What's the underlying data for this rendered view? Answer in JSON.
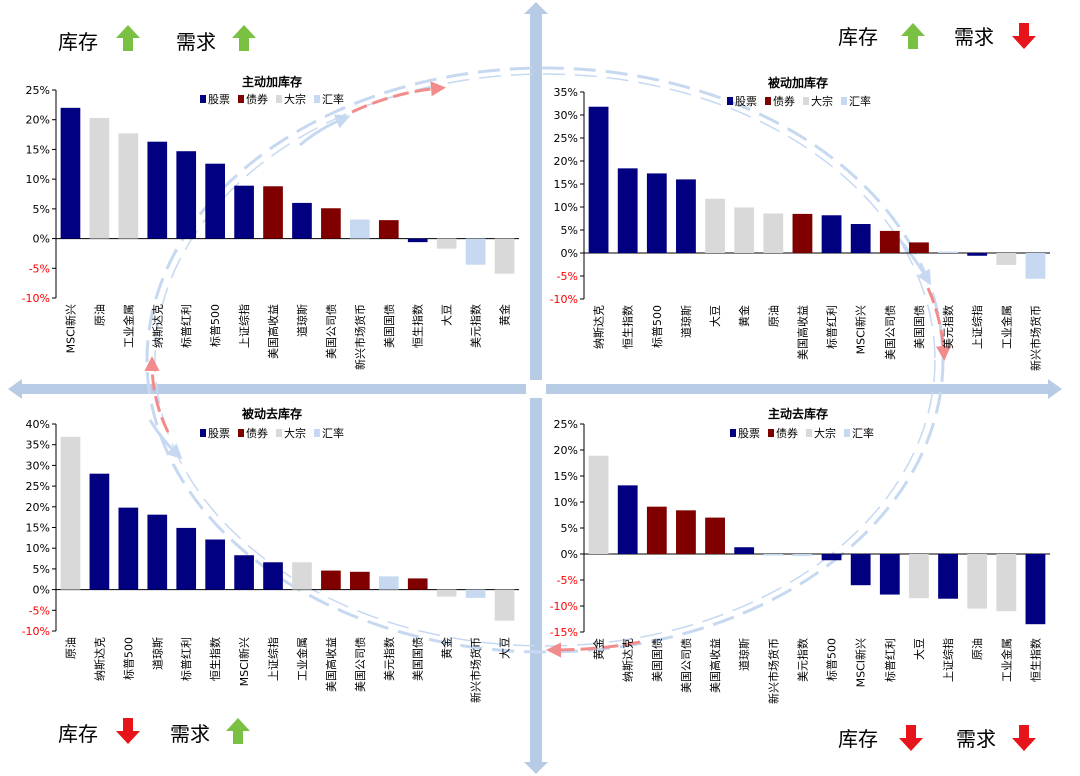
{
  "colors": {
    "stock": "#000080",
    "bond": "#800000",
    "commodity": "#d9d9d9",
    "fx": "#c6d9f1",
    "axis_arrow": "#b7cbe4",
    "up": "#7ac143",
    "down": "#e8141b",
    "tick": "#ff0000",
    "flow_arrow": "#f28c8c"
  },
  "legend": {
    "stock": "股票",
    "bond": "债券",
    "commodity": "大宗",
    "fx": "汇率"
  },
  "corners": {
    "tl": {
      "inventory": "库存",
      "inventory_dir": "up",
      "demand": "需求",
      "demand_dir": "up"
    },
    "tr": {
      "inventory": "库存",
      "inventory_dir": "up",
      "demand": "需求",
      "demand_dir": "down"
    },
    "bl": {
      "inventory": "库存",
      "inventory_dir": "down",
      "demand": "需求",
      "demand_dir": "up"
    },
    "br": {
      "inventory": "库存",
      "inventory_dir": "down",
      "demand": "需求",
      "demand_dir": "down"
    }
  },
  "chart_data": [
    {
      "type": "bar",
      "quadrant": "top-left",
      "title": "主动加库存",
      "ylim": [
        -10,
        25
      ],
      "yticks": [
        -10,
        -5,
        0,
        5,
        10,
        15,
        20,
        25
      ],
      "categories": [
        "MSCI新兴",
        "原油",
        "工业金属",
        "纳斯达克",
        "标普红利",
        "标普500",
        "上证综指",
        "美国高收益",
        "道琼斯",
        "美国公司债",
        "新兴市场货币",
        "美国国债",
        "恒生指数",
        "大豆",
        "美元指数",
        "黄金"
      ],
      "classes": [
        "stock",
        "commodity",
        "commodity",
        "stock",
        "stock",
        "stock",
        "stock",
        "bond",
        "stock",
        "bond",
        "fx",
        "bond",
        "stock",
        "commodity",
        "fx",
        "commodity"
      ],
      "values": [
        22,
        20.3,
        17.7,
        16.3,
        14.7,
        12.6,
        8.9,
        8.8,
        6.0,
        5.1,
        3.2,
        3.1,
        -0.6,
        -1.7,
        -4.4,
        -5.9
      ]
    },
    {
      "type": "bar",
      "quadrant": "top-right",
      "title": "被动加库存",
      "ylim": [
        -10,
        35
      ],
      "yticks": [
        -10,
        -5,
        0,
        5,
        10,
        15,
        20,
        25,
        30,
        35
      ],
      "categories": [
        "纳斯达克",
        "恒生指数",
        "标普500",
        "道琼斯",
        "大豆",
        "黄金",
        "原油",
        "美国高收益",
        "标普红利",
        "MSCI新兴",
        "美国公司债",
        "美国国债",
        "美元指数",
        "上证综指",
        "工业金属",
        "新兴市场货币"
      ],
      "classes": [
        "stock",
        "stock",
        "stock",
        "stock",
        "commodity",
        "commodity",
        "commodity",
        "bond",
        "stock",
        "stock",
        "bond",
        "bond",
        "fx",
        "stock",
        "commodity",
        "fx"
      ],
      "values": [
        31.8,
        18.4,
        17.3,
        16.0,
        11.8,
        9.9,
        8.6,
        8.5,
        8.2,
        6.3,
        4.8,
        2.3,
        0.3,
        -0.6,
        -2.6,
        -5.6
      ]
    },
    {
      "type": "bar",
      "quadrant": "bottom-left",
      "title": "被动去库存",
      "ylim": [
        -10,
        40
      ],
      "yticks": [
        -10,
        -5,
        0,
        5,
        10,
        15,
        20,
        25,
        30,
        35,
        40
      ],
      "categories": [
        "原油",
        "纳斯达克",
        "标普500",
        "道琼斯",
        "标普红利",
        "恒生指数",
        "MSCI新兴",
        "上证综指",
        "工业金属",
        "美国高收益",
        "美国公司债",
        "美元指数",
        "美国国债",
        "黄金",
        "新兴市场货币",
        "大豆"
      ],
      "classes": [
        "commodity",
        "stock",
        "stock",
        "stock",
        "stock",
        "stock",
        "stock",
        "stock",
        "commodity",
        "bond",
        "bond",
        "fx",
        "bond",
        "commodity",
        "fx",
        "commodity"
      ],
      "values": [
        36.9,
        28.0,
        19.8,
        18.1,
        14.9,
        12.1,
        8.3,
        6.6,
        6.6,
        4.6,
        4.3,
        3.2,
        2.7,
        -1.7,
        -2.0,
        -7.5
      ]
    },
    {
      "type": "bar",
      "quadrant": "bottom-right",
      "title": "主动去库存",
      "ylim": [
        -15,
        25
      ],
      "yticks": [
        -15,
        -10,
        -5,
        0,
        5,
        10,
        15,
        20,
        25
      ],
      "categories": [
        "黄金",
        "纳斯达克",
        "美国国债",
        "美国公司债",
        "美国高收益",
        "道琼斯",
        "新兴市场货币",
        "美元指数",
        "标普500",
        "MSCI新兴",
        "标普红利",
        "大豆",
        "上证综指",
        "原油",
        "工业金属",
        "恒生指数"
      ],
      "classes": [
        "commodity",
        "stock",
        "bond",
        "bond",
        "bond",
        "stock",
        "fx",
        "fx",
        "stock",
        "stock",
        "stock",
        "commodity",
        "stock",
        "commodity",
        "commodity",
        "stock"
      ],
      "values": [
        18.9,
        13.2,
        9.1,
        8.4,
        7.0,
        1.3,
        -0.3,
        -0.4,
        -1.2,
        -6.0,
        -7.8,
        -8.5,
        -8.6,
        -10.5,
        -11.0,
        -13.5
      ]
    }
  ]
}
